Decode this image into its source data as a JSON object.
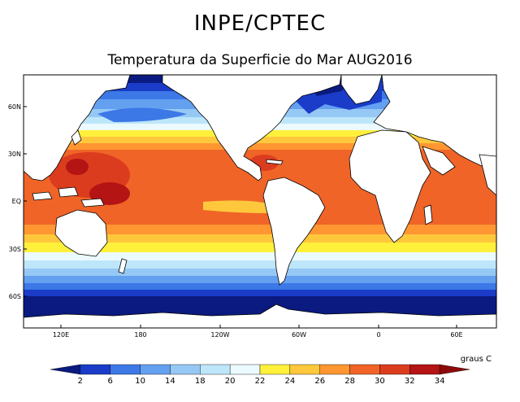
{
  "header": {
    "title": "INPE/CPTEC",
    "subtitle": "Temperatura da Superficie do Mar AUG2016"
  },
  "map": {
    "lon_labels": [
      "120E",
      "180",
      "120W",
      "60W",
      "0",
      "60E"
    ],
    "lat_labels": [
      "60N",
      "30N",
      "EQ",
      "30S",
      "60S"
    ],
    "land_color": "#ffffff",
    "coast_color": "#000000"
  },
  "colorbar": {
    "unit_label": "graus C",
    "ticks": [
      "2",
      "6",
      "10",
      "14",
      "18",
      "20",
      "22",
      "24",
      "26",
      "28",
      "30",
      "32",
      "34"
    ],
    "colors": [
      "#0a1a80",
      "#1a3cc8",
      "#3c78e6",
      "#64a0f0",
      "#96c8f5",
      "#bee6fa",
      "#ebfaff",
      "#fff03c",
      "#ffc83c",
      "#ff9632",
      "#f06428",
      "#dc3c1e",
      "#b41414",
      "#8c0a0a"
    ]
  }
}
